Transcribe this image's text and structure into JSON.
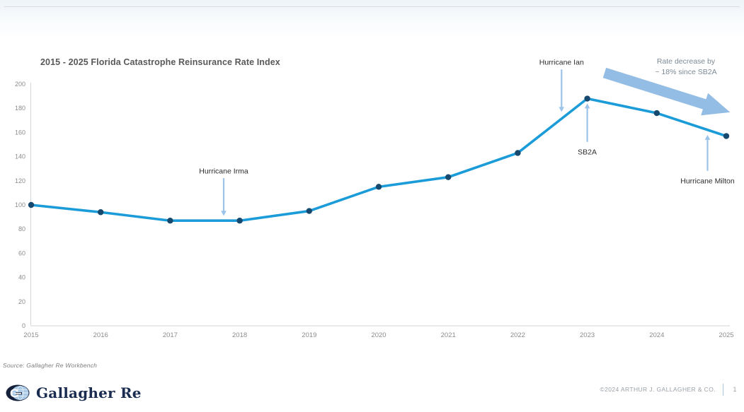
{
  "chart_data": {
    "type": "line",
    "title": "2015 - 2025 Florida Catastrophe Reinsurance Rate Index",
    "categories": [
      "2015",
      "2016",
      "2017",
      "2018",
      "2019",
      "2020",
      "2021",
      "2022",
      "2023",
      "2024",
      "2025"
    ],
    "series": [
      {
        "name": "Florida Catastrophe Reinsurance Rate Index",
        "values": [
          100,
          94,
          87,
          87,
          95,
          115,
          123,
          143,
          188,
          176,
          157
        ]
      }
    ],
    "xlabel": "",
    "ylabel": "",
    "ylim": [
      0,
      200
    ],
    "ytick_step": 20,
    "grid": false,
    "legend": false,
    "line_color": "#1b9cd8",
    "marker_color": "#17486d",
    "axis_line_color": "#d6d6d6",
    "axis_text_color": "#8c8c8c",
    "annotation_text_color": "#2b2b2b",
    "annotation_arrow_color": "#9cc3e8",
    "block_arrow_color": "#8ab7e2",
    "annotations": [
      {
        "id": "irma",
        "label": "Hurricane Irma",
        "year": 2017.77,
        "tip_value": 91,
        "text_value": 128,
        "placement": "above"
      },
      {
        "id": "ian",
        "label": "Hurricane Ian",
        "year": 2022.63,
        "tip_value": 177,
        "text_value": 218,
        "placement": "above"
      },
      {
        "id": "sb2a",
        "label": "SB2A",
        "year": 2023.0,
        "tip_value": 184,
        "text_value": 144,
        "placement": "below"
      },
      {
        "id": "milton",
        "label": "Hurricane Milton",
        "year": 2024.73,
        "tip_value": 158,
        "text_value": 120,
        "placement": "below"
      }
    ],
    "note": {
      "lines": [
        "Rate decrease by",
        "~ 18% since SB2A"
      ]
    }
  },
  "footer": {
    "source": "Source: Gallagher Re Workbench",
    "logo_text": "Gallagher Re",
    "copyright": "©2024 ARTHUR J. GALLAGHER & CO.",
    "page_number": "1"
  }
}
